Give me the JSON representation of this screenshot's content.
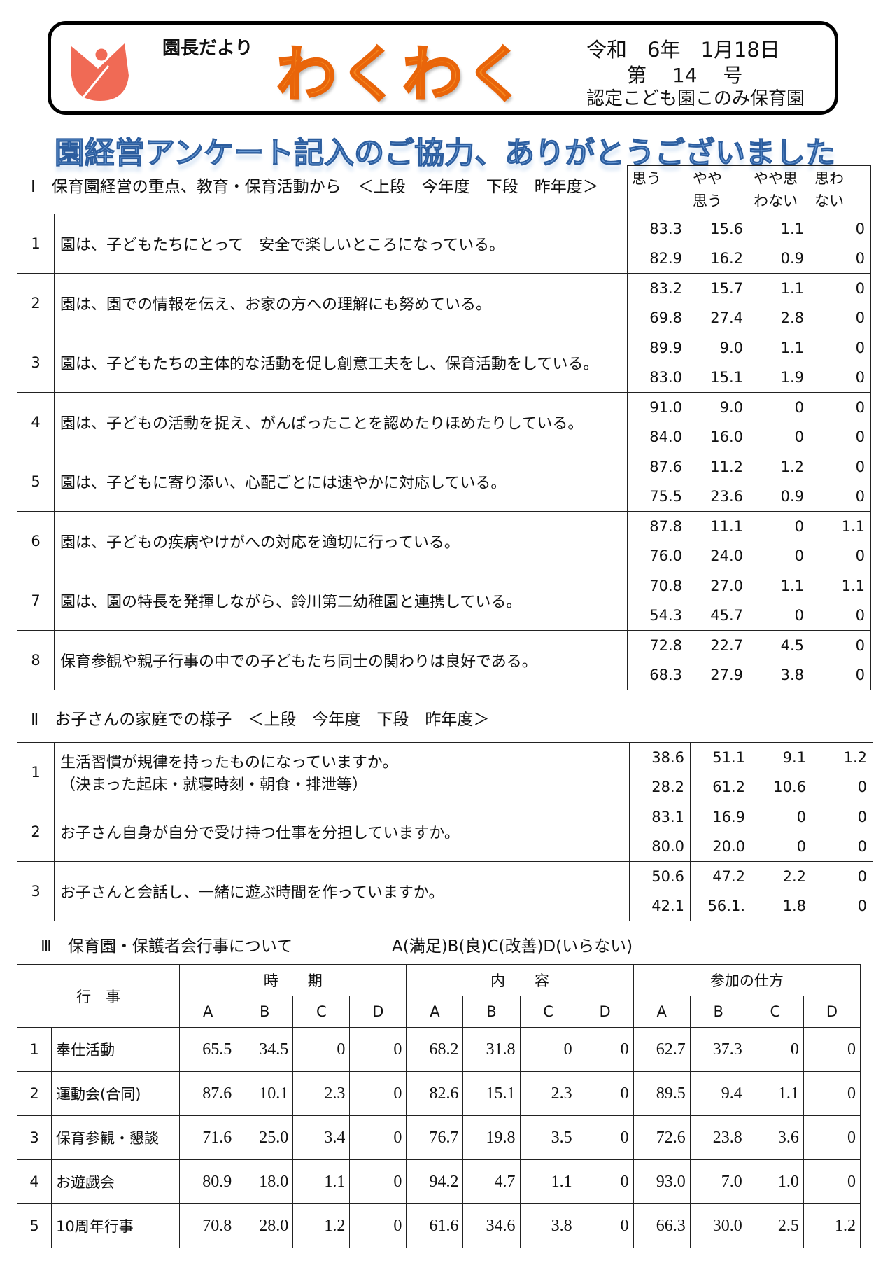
{
  "header": {
    "column_title": "園長だより",
    "newsletter_title": "わくわく",
    "date": "令和　6年　1月18日",
    "issue": "第　 14　 号",
    "school": "認定こども園このみ保育園"
  },
  "banner": "園経営アンケート記入のご協力、ありがとうございました",
  "section1": {
    "title": "Ⅰ　保育園経営の重点、教育・保育活動から　＜上段　今年度　下段　昨年度＞",
    "columns": [
      "思う",
      "やや\n思う",
      "やや思\nわない",
      "思わ\nない"
    ],
    "rows": [
      {
        "no": "1",
        "q": "園は、子どもたちにとって　安全で楽しいところになっている。",
        "cur": [
          "83.3",
          "15.6",
          "1.1",
          "0"
        ],
        "prev": [
          "82.9",
          "16.2",
          "0.9",
          "0"
        ]
      },
      {
        "no": "2",
        "q": "園は、園での情報を伝え、お家の方への理解にも努めている。",
        "cur": [
          "83.2",
          "15.7",
          "1.1",
          "0"
        ],
        "prev": [
          "69.8",
          "27.4",
          "2.8",
          "0"
        ]
      },
      {
        "no": "3",
        "q": "園は、子どもたちの主体的な活動を促し創意工夫をし、保育活動をしている。",
        "cur": [
          "89.9",
          "9.0",
          "1.1",
          "0"
        ],
        "prev": [
          "83.0",
          "15.1",
          "1.9",
          "0"
        ]
      },
      {
        "no": "4",
        "q": "園は、子どもの活動を捉え、がんばったことを認めたりほめたりしている。",
        "cur": [
          "91.0",
          "9.0",
          "0",
          "0"
        ],
        "prev": [
          "84.0",
          "16.0",
          "0",
          "0"
        ]
      },
      {
        "no": "5",
        "q": "園は、子どもに寄り添い、心配ごとには速やかに対応している。",
        "cur": [
          "87.6",
          "11.2",
          "1.2",
          "0"
        ],
        "prev": [
          "75.5",
          "23.6",
          "0.9",
          "0"
        ]
      },
      {
        "no": "6",
        "q": "園は、子どもの疾病やけがへの対応を適切に行っている。",
        "cur": [
          "87.8",
          "11.1",
          "0",
          "1.1"
        ],
        "prev": [
          "76.0",
          "24.0",
          "0",
          "0"
        ]
      },
      {
        "no": "7",
        "q": "園は、園の特長を発揮しながら、鈴川第二幼稚園と連携している。",
        "cur": [
          "70.8",
          "27.0",
          "1.1",
          "1.1"
        ],
        "prev": [
          "54.3",
          "45.7",
          "0",
          "0"
        ]
      },
      {
        "no": "8",
        "q": "保育参観や親子行事の中での子どもたち同士の関わりは良好である。",
        "cur": [
          "72.8",
          "22.7",
          "4.5",
          "0"
        ],
        "prev": [
          "68.3",
          "27.9",
          "3.8",
          "0"
        ]
      }
    ]
  },
  "section2": {
    "title": "Ⅱ　お子さんの家庭での様子　＜上段　今年度　下段　昨年度＞",
    "rows": [
      {
        "no": "1",
        "q": "生活習慣が規律を持ったものになっていますか。\n（決まった起床・就寝時刻・朝食・排泄等）",
        "cur": [
          "38.6",
          "51.1",
          "9.1",
          "1.2"
        ],
        "prev": [
          "28.2",
          "61.2",
          "10.6",
          "0"
        ]
      },
      {
        "no": "2",
        "q": "お子さん自身が自分で受け持つ仕事を分担していますか。",
        "cur": [
          "83.1",
          "16.9",
          "0",
          "0"
        ],
        "prev": [
          "80.0",
          "20.0",
          "0",
          "0"
        ]
      },
      {
        "no": "3",
        "q": "お子さんと会話し、一緒に遊ぶ時間を作っていますか。",
        "cur": [
          "50.6",
          "47.2",
          "2.2",
          "0"
        ],
        "prev": [
          "42.1",
          "56.1.",
          "1.8",
          "0"
        ]
      }
    ]
  },
  "section3": {
    "title": "Ⅲ　保育園・保護者会行事について",
    "legend": "A(満足)B(良)C(改善)D(いらない)",
    "event_header": "行　事",
    "groups": [
      "時　　期",
      "内　　容",
      "参加の仕方"
    ],
    "subcols": [
      "A",
      "B",
      "C",
      "D"
    ],
    "rows": [
      {
        "no": "1",
        "name": "奉仕活動",
        "values": [
          "65.5",
          "34.5",
          "0",
          "0",
          "68.2",
          "31.8",
          "0",
          "0",
          "62.7",
          "37.3",
          "0",
          "0"
        ]
      },
      {
        "no": "2",
        "name": "運動会(合同)",
        "values": [
          "87.6",
          "10.1",
          "2.3",
          "0",
          "82.6",
          "15.1",
          "2.3",
          "0",
          "89.5",
          "9.4",
          "1.1",
          "0"
        ]
      },
      {
        "no": "3",
        "name": "保育参観・懇談",
        "values": [
          "71.6",
          "25.0",
          "3.4",
          "0",
          "76.7",
          "19.8",
          "3.5",
          "0",
          "72.6",
          "23.8",
          "3.6",
          "0"
        ]
      },
      {
        "no": "4",
        "name": "お遊戯会",
        "values": [
          "80.9",
          "18.0",
          "1.1",
          "0",
          "94.2",
          "4.7",
          "1.1",
          "0",
          "93.0",
          "7.0",
          "1.0",
          "0"
        ]
      },
      {
        "no": "5",
        "name": "10周年行事",
        "values": [
          "70.8",
          "28.0",
          "1.2",
          "0",
          "61.6",
          "34.6",
          "3.8",
          "0",
          "66.3",
          "30.0",
          "2.5",
          "1.2"
        ]
      }
    ]
  }
}
